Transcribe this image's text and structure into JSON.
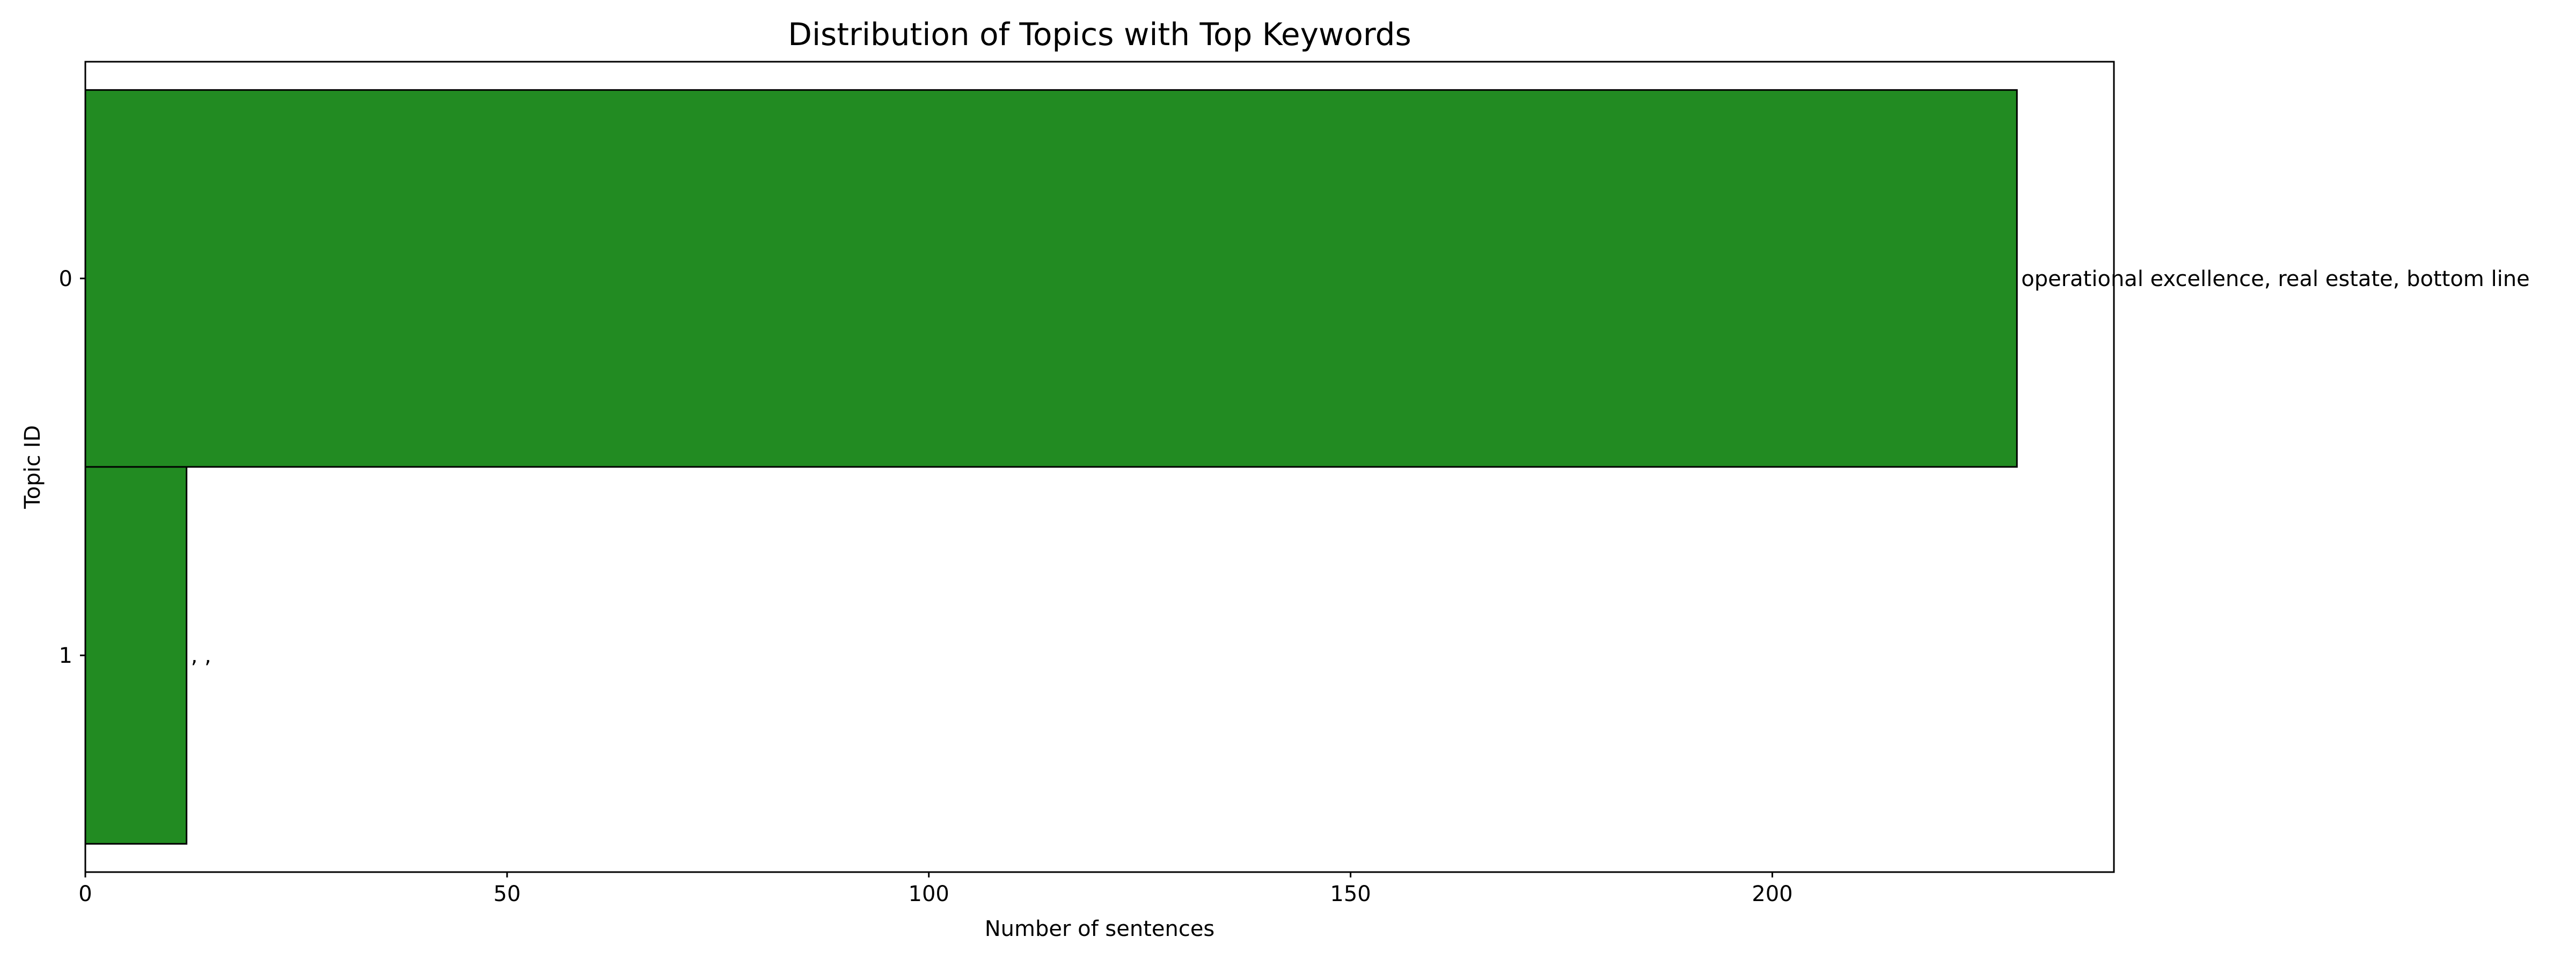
{
  "chart_data": {
    "type": "bar",
    "orientation": "horizontal",
    "title": "Distribution of Topics with Top Keywords",
    "xlabel": "Number of sentences",
    "ylabel": "Topic ID",
    "categories": [
      "0",
      "1"
    ],
    "values": [
      229,
      12
    ],
    "bar_labels": [
      "operational excellence, real estate, bottom line",
      ", ,"
    ],
    "xlim": [
      0,
      240.5
    ],
    "xticks": [
      0,
      50,
      100,
      150,
      200
    ],
    "y_inverted": true,
    "grid": false,
    "legend": "none",
    "bar_color": "#228B22",
    "edge_color": "#000000"
  }
}
